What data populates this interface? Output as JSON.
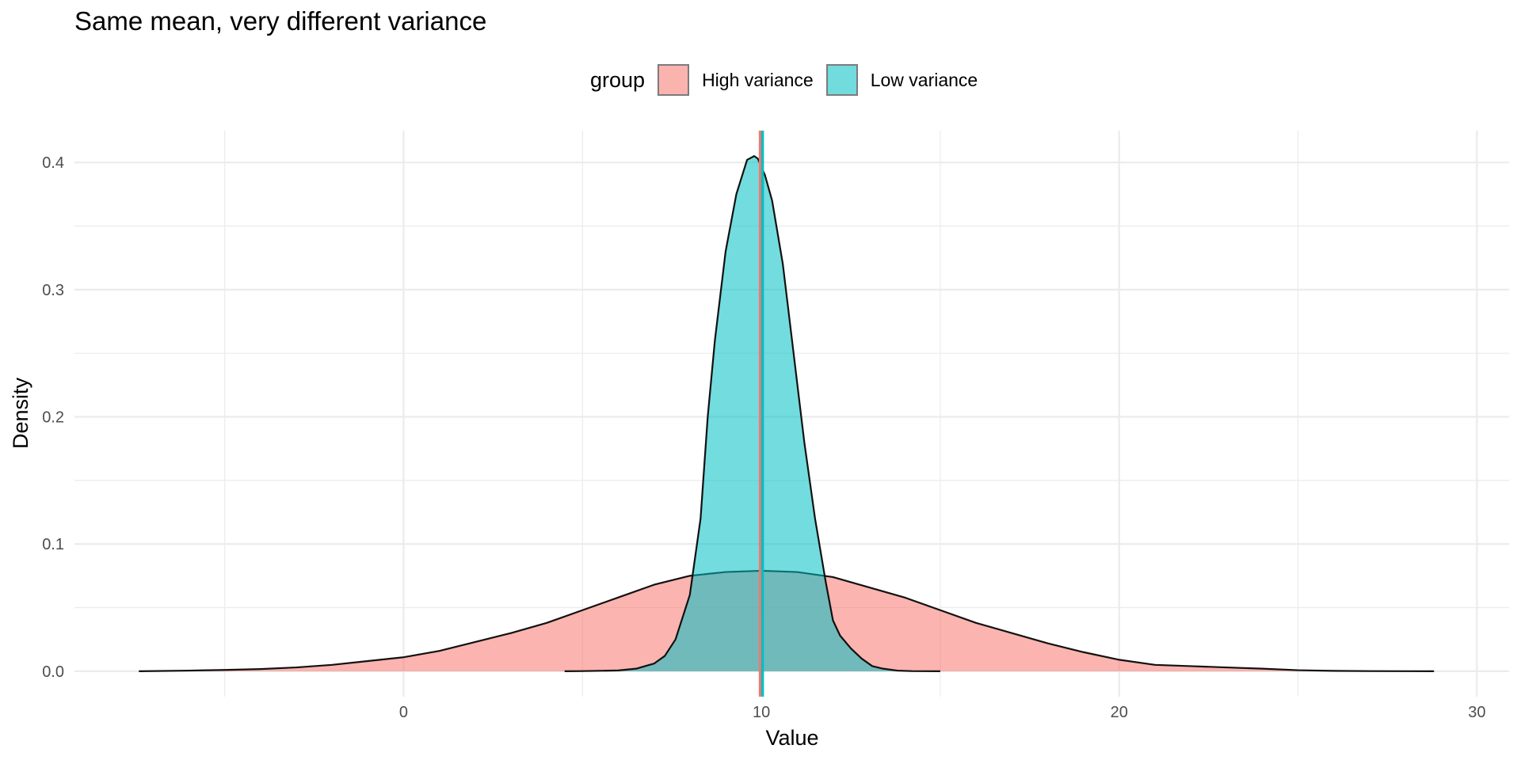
{
  "chart_data": {
    "type": "area",
    "title": "Same mean, very different variance",
    "xlabel": "Value",
    "ylabel": "Density",
    "legend": {
      "title": "group",
      "placement": "top",
      "entries": [
        "High variance",
        "Low variance"
      ]
    },
    "xlim": [
      -9.2,
      30.9
    ],
    "ylim": [
      -0.02,
      0.425
    ],
    "x_ticks": [
      0,
      10,
      20,
      30
    ],
    "x_tick_labels": [
      "0",
      "10",
      "20",
      "30"
    ],
    "y_ticks": [
      0.0,
      0.1,
      0.2,
      0.3,
      0.4
    ],
    "y_tick_labels": [
      "0.0",
      "0.1",
      "0.2",
      "0.3",
      "0.4"
    ],
    "grid": true,
    "series": [
      {
        "name": "High variance",
        "color": "#F8766D",
        "mean": 10,
        "x": [
          -7.4,
          -6,
          -5,
          -4,
          -3,
          -2,
          -1,
          0,
          1,
          2,
          3,
          4,
          5,
          6,
          7,
          8,
          9,
          10,
          11,
          12,
          13,
          14,
          15,
          16,
          17,
          18,
          19,
          20,
          21,
          22,
          23,
          24,
          25,
          26,
          27,
          28,
          28.8
        ],
        "y": [
          0.0,
          0.0005,
          0.001,
          0.0017,
          0.003,
          0.005,
          0.008,
          0.011,
          0.016,
          0.023,
          0.03,
          0.038,
          0.048,
          0.058,
          0.068,
          0.075,
          0.078,
          0.079,
          0.078,
          0.074,
          0.066,
          0.058,
          0.048,
          0.038,
          0.03,
          0.022,
          0.015,
          0.009,
          0.005,
          0.004,
          0.003,
          0.002,
          0.0008,
          0.0003,
          0.0001,
          2e-05,
          0.0
        ]
      },
      {
        "name": "Low variance",
        "color": "#00BFC4",
        "mean": 10,
        "x": [
          4.5,
          5,
          6,
          6.5,
          7,
          7.3,
          7.6,
          8,
          8.3,
          8.5,
          8.7,
          9,
          9.3,
          9.6,
          9.8,
          9.9,
          10.1,
          10.3,
          10.6,
          10.9,
          11.2,
          11.5,
          11.8,
          12,
          12.2,
          12.5,
          12.8,
          13.1,
          13.4,
          13.8,
          14.2,
          15
        ],
        "y": [
          0.0,
          0.0001,
          0.0006,
          0.002,
          0.006,
          0.012,
          0.025,
          0.06,
          0.12,
          0.2,
          0.26,
          0.33,
          0.375,
          0.402,
          0.405,
          0.403,
          0.39,
          0.37,
          0.32,
          0.25,
          0.18,
          0.12,
          0.07,
          0.04,
          0.028,
          0.018,
          0.01,
          0.004,
          0.002,
          0.0005,
          0.0001,
          0.0
        ]
      }
    ]
  }
}
